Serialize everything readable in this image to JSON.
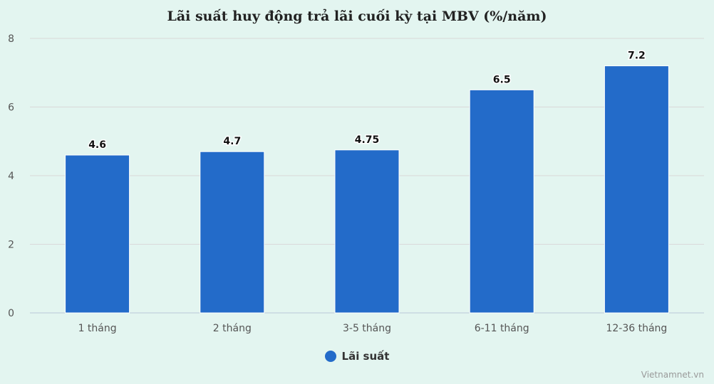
{
  "chart_data": {
    "type": "bar",
    "title": "Lãi suất huy động trả lãi cuối kỳ tại MBV (%/năm)",
    "categories": [
      "1 tháng",
      "2 tháng",
      "3-5 tháng",
      "6-11 tháng",
      "12-36 tháng"
    ],
    "series": [
      {
        "name": "Lãi suất",
        "values": [
          4.6,
          4.7,
          4.75,
          6.5,
          7.2
        ]
      }
    ],
    "data_labels": [
      "4.6",
      "4.7",
      "4.75",
      "6.5",
      "7.2"
    ],
    "y_ticks": [
      0,
      2,
      4,
      6,
      8
    ],
    "ylim": [
      0,
      8
    ],
    "xlabel": "",
    "ylabel": "",
    "grid": true,
    "legend_position": "bottom",
    "colors": {
      "bar": "#236bc9",
      "background": "#e3f5f0",
      "grid": "#d9d9d9"
    }
  },
  "credit": "Vietnamnet.vn"
}
